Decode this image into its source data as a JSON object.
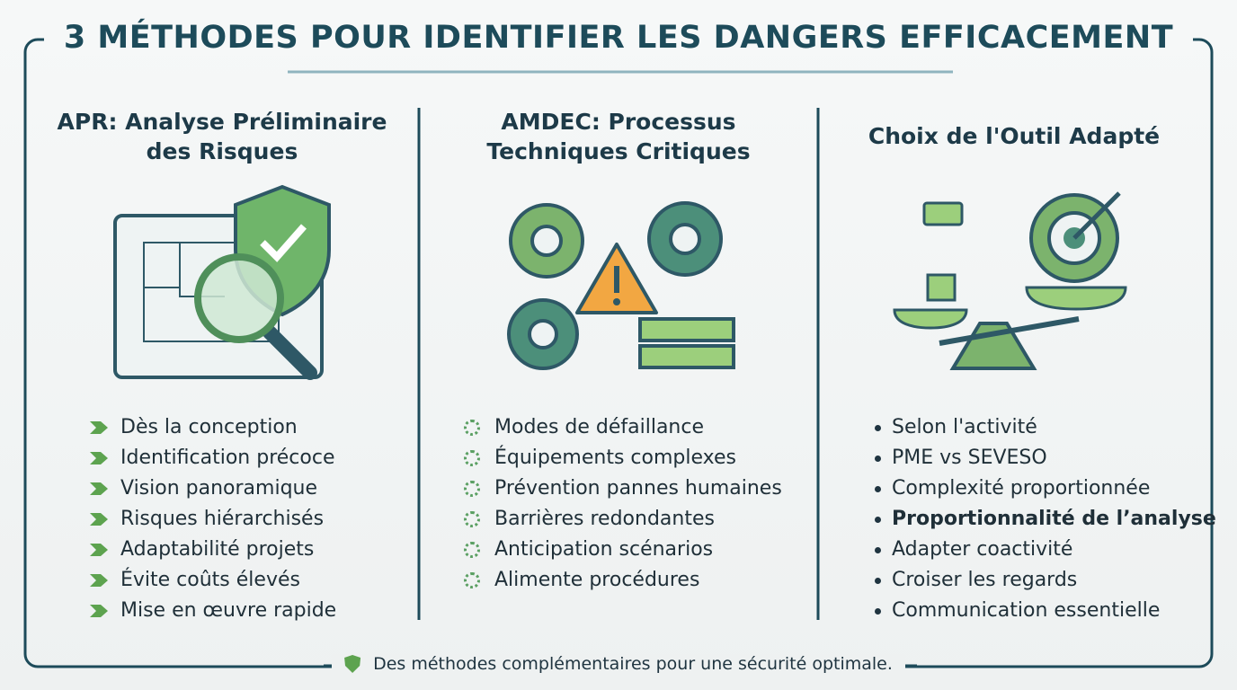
{
  "title": "3 MÉTHODES POUR IDENTIFIER LES DANGERS EFFICACEMENT",
  "columns": [
    {
      "heading": "APR: Analyse Préliminaire des Risques",
      "items": [
        "Dès la conception",
        "Identification précoce",
        "Vision panoramique",
        "Risques hiérarchisés",
        "Adaptabilité projets",
        "Évite coûts élevés",
        "Mise en œuvre rapide"
      ]
    },
    {
      "heading": "AMDEC: Processus Techniques Critiques",
      "items": [
        "Modes de défaillance",
        "Équipements complexes",
        "Prévention pannes humaines",
        "Barrières redondantes",
        "Anticipation scénarios",
        "Alimente procédures"
      ]
    },
    {
      "heading": "Choix de l'Outil Adapté",
      "items": [
        "Selon l'activité",
        "PME vs SEVESO",
        "Complexité proportionnée",
        "Proportionnalité de l’analyse",
        "Adapter coactivité",
        "Croiser les regards",
        "Communication essentielle"
      ]
    }
  ],
  "footer": "Des méthodes complémentaires pour une sécurité optimale."
}
